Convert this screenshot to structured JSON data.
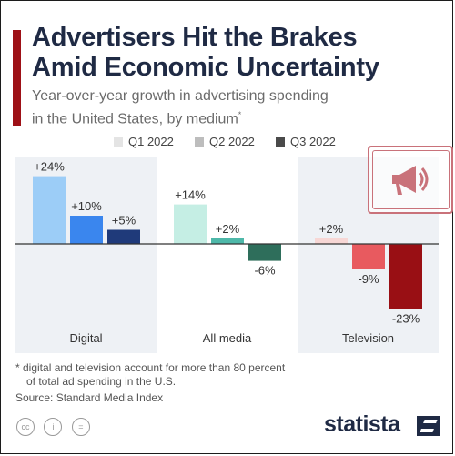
{
  "header": {
    "title_line1": "Advertisers Hit the Brakes",
    "title_line2": "Amid Economic Uncertainty",
    "subtitle_line1": "Year-over-year growth in advertising spending",
    "subtitle_line2": "in the United States, by medium",
    "subtitle_mark": "*"
  },
  "footer": {
    "footnote_line1": "* digital and television account for more than 80 percent",
    "footnote_line2": "of total ad spending in the U.S.",
    "source": "Source: Standard Media Index",
    "logo_text": "statista",
    "license_icons": [
      "cc-icon",
      "person-icon",
      "equals-icon"
    ]
  },
  "chart_data": {
    "type": "bar",
    "categories": [
      "Digital",
      "All media",
      "Television"
    ],
    "series": [
      {
        "name": "Q1 2022",
        "values": [
          24,
          14,
          2
        ],
        "labels": [
          "+24%",
          "+14%",
          "+2%"
        ],
        "colors": [
          "#9ccdf7",
          "#c5eee4",
          "#f7d7d5"
        ],
        "legend_color": "#e4e4e4"
      },
      {
        "name": "Q2 2022",
        "values": [
          10,
          2,
          -9
        ],
        "labels": [
          "+10%",
          "+2%",
          "-9%"
        ],
        "colors": [
          "#3a86ee",
          "#4eb8a9",
          "#e85a5f"
        ],
        "legend_color": "#bdbdbd"
      },
      {
        "name": "Q3 2022",
        "values": [
          5,
          -6,
          -23
        ],
        "labels": [
          "+5%",
          "-6%",
          "-23%"
        ],
        "colors": [
          "#1f3a7a",
          "#2e6e5b",
          "#990f14"
        ],
        "legend_color": "#4a4a4a"
      }
    ],
    "ylim": [
      -27,
      27
    ],
    "band_colors": [
      "#eef1f5",
      "#ffffff",
      "#eef1f5"
    ]
  }
}
